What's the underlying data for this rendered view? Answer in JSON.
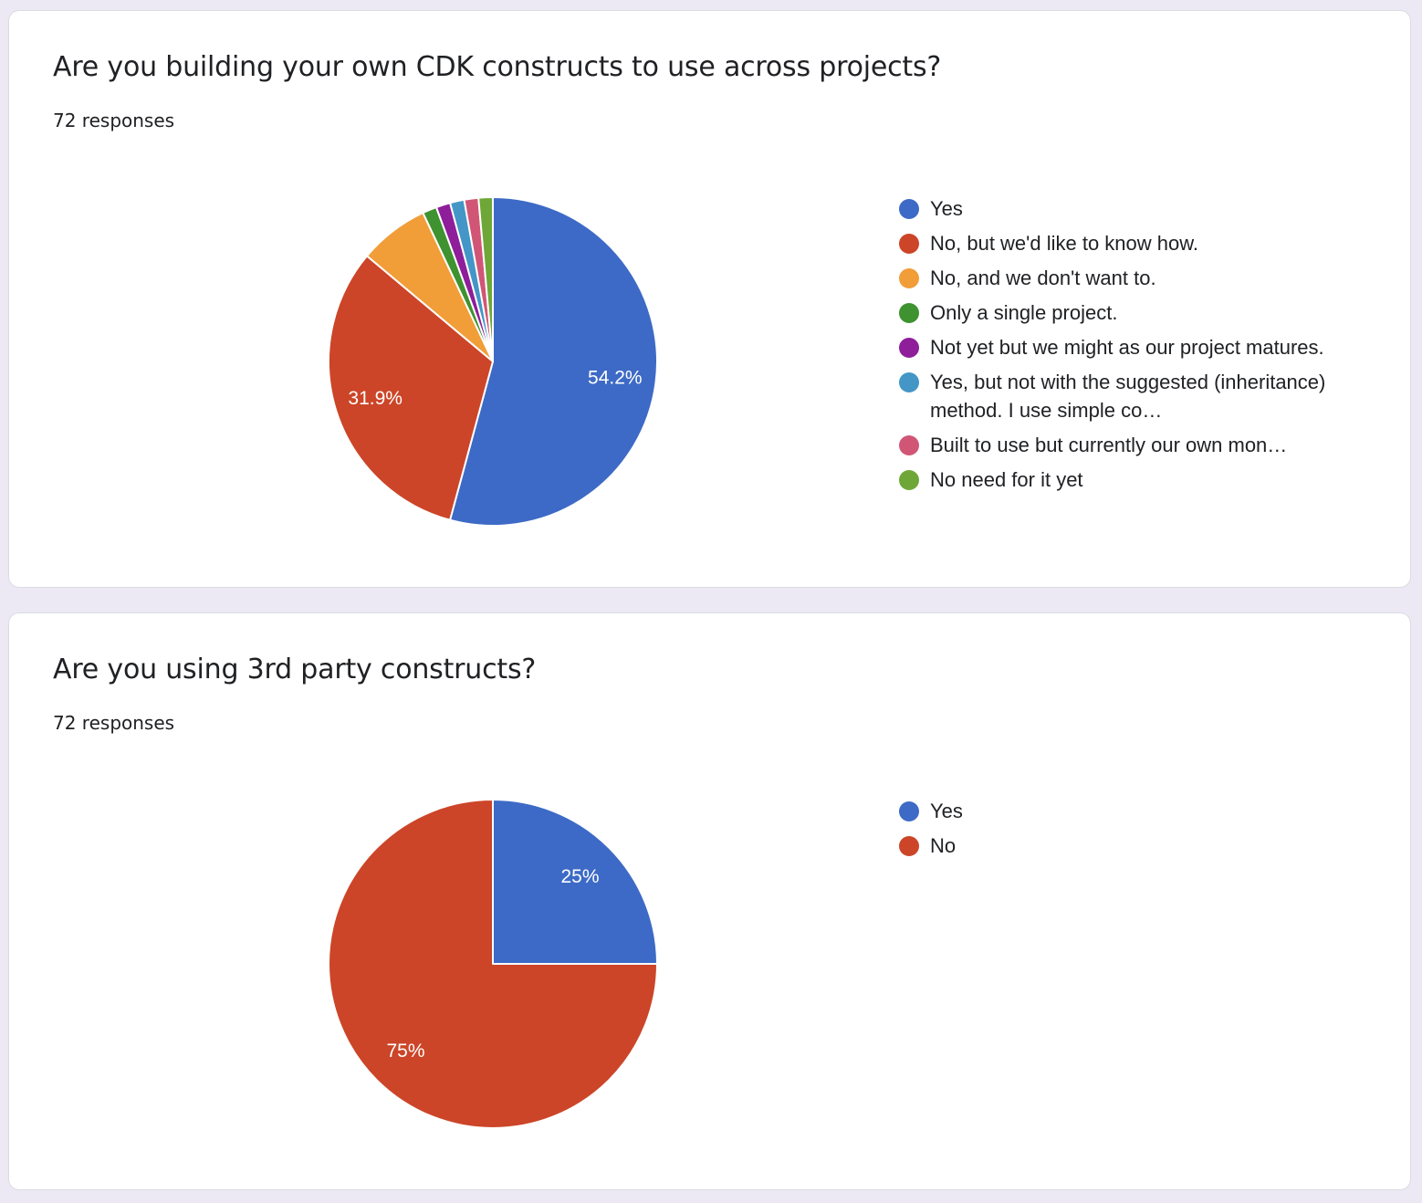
{
  "cards": [
    {
      "question": "Are you building your own CDK constructs to use across projects?",
      "responses": "72 responses"
    },
    {
      "question": "Are you using 3rd party constructs?",
      "responses": "72 responses"
    }
  ],
  "chart_data": [
    {
      "type": "pie",
      "title": "Are you building your own CDK constructs to use across projects?",
      "total_responses": 72,
      "start_angle_deg": 90,
      "direction": "clockwise",
      "legend_position": "right",
      "slices": [
        {
          "label": "Yes",
          "value": 54.2,
          "display_label": "54.2%",
          "color": "#3d6ac6"
        },
        {
          "label": "No, but we'd like to know how.",
          "value": 31.9,
          "display_label": "31.9%",
          "color": "#cc4528"
        },
        {
          "label": "No, and we don't want to.",
          "value": 6.9,
          "display_label": "",
          "color": "#f19d38"
        },
        {
          "label": "Only a single project.",
          "value": 1.4,
          "display_label": "",
          "color": "#3e922f"
        },
        {
          "label": "Not yet but we might as our project matures.",
          "value": 1.4,
          "display_label": "",
          "color": "#8e1e9a"
        },
        {
          "label": "Yes, but not with the suggested (inheritance) method. I use simple co…",
          "value": 1.4,
          "display_label": "",
          "color": "#4396c6"
        },
        {
          "label": "Built to use but currently our own mon…",
          "value": 1.4,
          "display_label": "",
          "color": "#d15676"
        },
        {
          "label": "No need for it yet",
          "value": 1.4,
          "display_label": "",
          "color": "#6ea737"
        }
      ]
    },
    {
      "type": "pie",
      "title": "Are you using 3rd party constructs?",
      "total_responses": 72,
      "start_angle_deg": 90,
      "direction": "clockwise",
      "legend_position": "right",
      "slices": [
        {
          "label": "Yes",
          "value": 25,
          "display_label": "25%",
          "color": "#3d6ac6"
        },
        {
          "label": "No",
          "value": 75,
          "display_label": "75%",
          "color": "#cc4528"
        }
      ]
    }
  ]
}
